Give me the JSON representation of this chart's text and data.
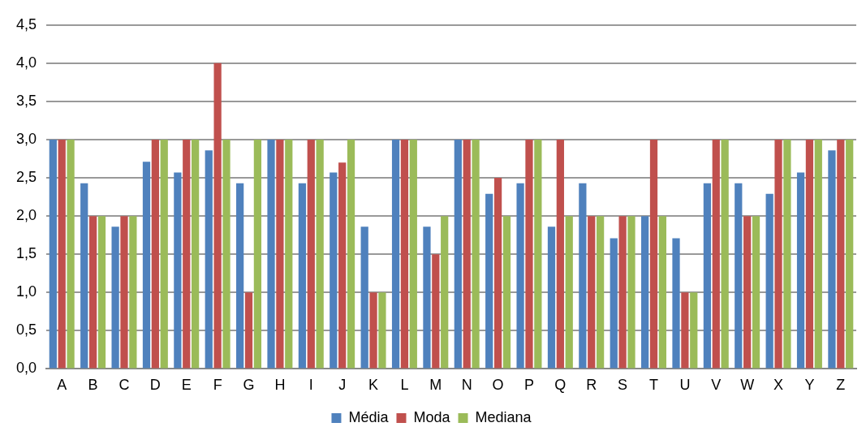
{
  "chart_data": {
    "type": "bar",
    "categories": [
      "A",
      "B",
      "C",
      "D",
      "E",
      "F",
      "G",
      "H",
      "I",
      "J",
      "K",
      "L",
      "M",
      "N",
      "O",
      "P",
      "Q",
      "R",
      "S",
      "T",
      "U",
      "V",
      "W",
      "X",
      "Y",
      "Z"
    ],
    "series": [
      {
        "name": "Média",
        "color": "#4f81bd",
        "values": [
          3.0,
          2.43,
          1.86,
          2.71,
          2.57,
          2.86,
          2.43,
          3.0,
          2.43,
          2.57,
          1.86,
          3.0,
          1.86,
          3.0,
          2.29,
          2.43,
          1.86,
          2.43,
          1.71,
          2.0,
          1.71,
          2.43,
          2.43,
          2.29,
          2.57,
          2.86
        ]
      },
      {
        "name": "Moda",
        "color": "#c0504d",
        "values": [
          3,
          2,
          2,
          3,
          3,
          4,
          1,
          3,
          3,
          2.7,
          1,
          3,
          1.5,
          3,
          2.5,
          3,
          3,
          2,
          2,
          3,
          1,
          3,
          2,
          3,
          3,
          3
        ]
      },
      {
        "name": "Mediana",
        "color": "#9bbb59",
        "values": [
          3,
          2,
          2,
          3,
          3,
          3,
          3,
          3,
          3,
          3,
          1,
          3,
          2,
          3,
          2,
          3,
          2,
          2,
          2,
          2,
          1,
          3,
          2,
          3,
          3,
          3
        ]
      }
    ],
    "ylim": [
      0,
      4.5
    ],
    "yticks": [
      {
        "value": 0,
        "label": "0,0"
      },
      {
        "value": 0.5,
        "label": "0,5"
      },
      {
        "value": 1,
        "label": "1,0"
      },
      {
        "value": 1.5,
        "label": "1,5"
      },
      {
        "value": 2,
        "label": "2,0"
      },
      {
        "value": 2.5,
        "label": "2,5"
      },
      {
        "value": 3,
        "label": "3,0"
      },
      {
        "value": 3.5,
        "label": "3,5"
      },
      {
        "value": 4,
        "label": "4,0"
      },
      {
        "value": 4.5,
        "label": "4,5"
      }
    ],
    "grid": "y",
    "legend": "bottom"
  }
}
